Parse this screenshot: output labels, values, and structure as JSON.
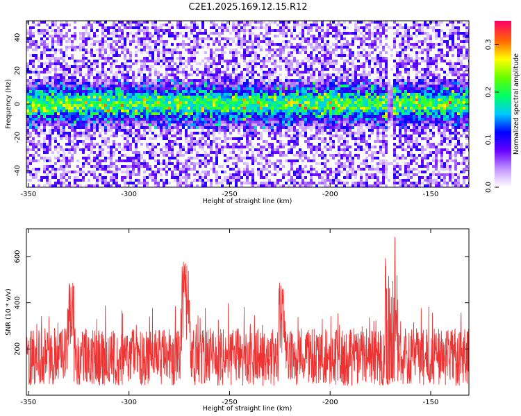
{
  "title": "C2E1.2025.169.12.15.R12",
  "chart_data": [
    {
      "type": "heatmap",
      "title": "C2E1.2025.169.12.15.R12",
      "xlabel": "Height of straight line (km)",
      "ylabel": "Frequency (Hz)",
      "xlim": [
        -351,
        -131
      ],
      "ylim": [
        -50,
        50
      ],
      "xticks": [
        -350,
        -300,
        -250,
        -200,
        -150
      ],
      "yticks": [
        -40,
        -20,
        0,
        20,
        40
      ],
      "colorbar": {
        "label": "Normalized spectral amplitude",
        "range": [
          0,
          0.35
        ],
        "ticks": [
          "0.0",
          "0.1",
          "0.2",
          "0.3"
        ]
      },
      "band_center_hz": 0,
      "band_halfwidth_hz": 10,
      "hotspots": [
        {
          "x": -329,
          "y": -3,
          "amp": 0.28
        },
        {
          "x": -305,
          "y": 6,
          "amp": 0.22
        },
        {
          "x": -271,
          "y": -1,
          "amp": 0.2
        },
        {
          "x": -171,
          "y": -7,
          "amp": 0.35
        },
        {
          "x": -168,
          "y": 8,
          "amp": 0.24
        },
        {
          "x": -157,
          "y": 1,
          "amp": 0.26
        },
        {
          "x": -135,
          "y": -3,
          "amp": 0.22
        }
      ],
      "gap_x": -170
    },
    {
      "type": "line",
      "xlabel": "Height of straight line (km)",
      "ylabel": "SNR (10 * v/v)",
      "xlim": [
        -351,
        -131
      ],
      "ylim": [
        0,
        720
      ],
      "xticks": [
        -350,
        -300,
        -250,
        -200,
        -150
      ],
      "yticks": [
        200,
        400,
        600
      ],
      "color": "#ee3333",
      "baseline_range": [
        40,
        290
      ],
      "features": [
        {
          "x": -329,
          "peak": 490
        },
        {
          "x": -272,
          "peak": 590
        },
        {
          "x": -224,
          "peak": 490
        },
        {
          "x": -171,
          "peak": 610
        },
        {
          "x": -168,
          "peak": 720
        }
      ],
      "dropout": {
        "from": -174,
        "to": -167,
        "low": 40
      }
    }
  ]
}
